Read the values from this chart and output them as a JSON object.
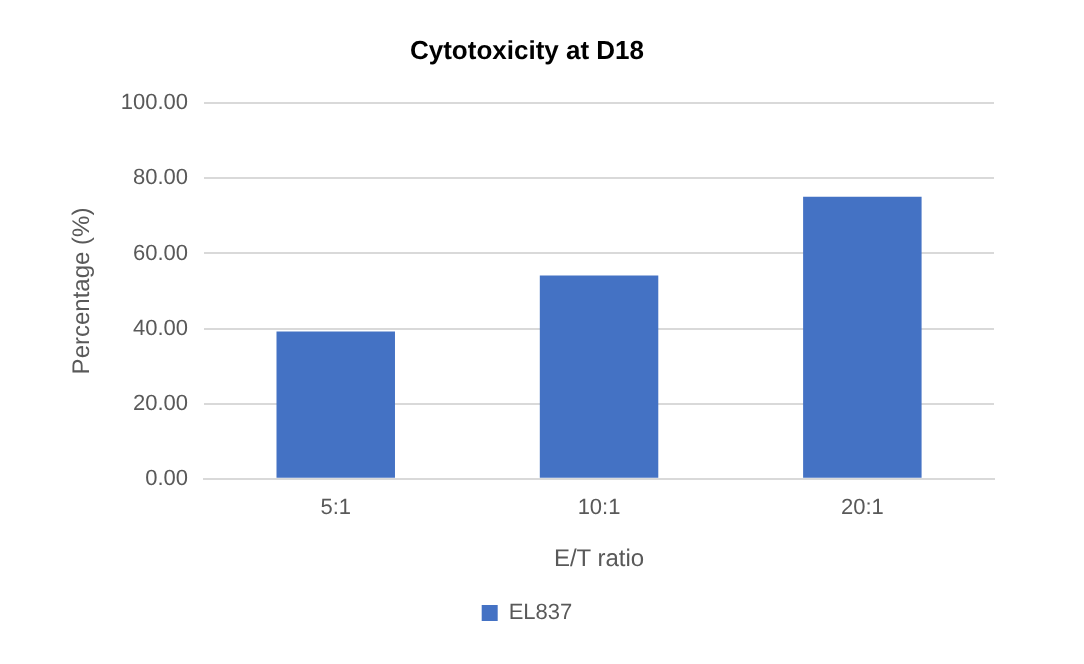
{
  "chart_data": {
    "type": "bar",
    "title": "Cytotoxicity at D18",
    "xlabel": "E/T ratio",
    "ylabel": "Percentage (%)",
    "categories": [
      "5:1",
      "10:1",
      "20:1"
    ],
    "series": [
      {
        "name": "EL837",
        "color": "#4472c4",
        "values": [
          39.2,
          54.1,
          75.1
        ]
      }
    ],
    "ylim": [
      0,
      100
    ],
    "yticks": [
      {
        "value": 0,
        "label": "0.00"
      },
      {
        "value": 20,
        "label": "20.00"
      },
      {
        "value": 40,
        "label": "40.00"
      },
      {
        "value": 60,
        "label": "60.00"
      },
      {
        "value": 80,
        "label": "80.00"
      },
      {
        "value": 100,
        "label": "100.00"
      }
    ],
    "grid": "y",
    "legend": "bottom"
  }
}
